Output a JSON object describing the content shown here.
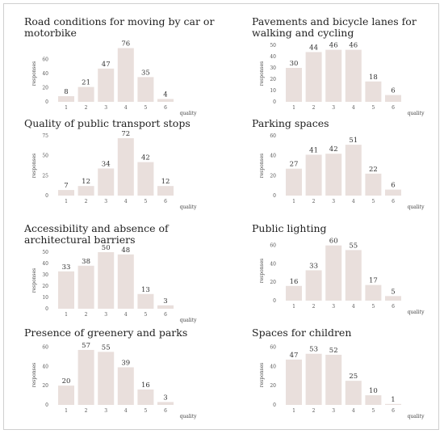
{
  "chart_data": [
    {
      "type": "bar",
      "title": "Road conditions for moving by car or motorbike",
      "xlabel": "quality",
      "ylabel": "responses",
      "categories": [
        "1",
        "2",
        "3",
        "4",
        "5",
        "6"
      ],
      "values": [
        8,
        21,
        47,
        76,
        35,
        4
      ],
      "ylim": [
        0,
        80
      ],
      "yticks": [
        0,
        20,
        40,
        60
      ],
      "grid": false
    },
    {
      "type": "bar",
      "title": "Pavements and bicycle lanes for walking and cycling",
      "xlabel": "quality",
      "ylabel": "responses",
      "categories": [
        "1",
        "2",
        "3",
        "4",
        "5",
        "6"
      ],
      "values": [
        30,
        44,
        46,
        46,
        18,
        6
      ],
      "ylim": [
        0,
        50
      ],
      "yticks": [
        0,
        10,
        20,
        30,
        40,
        50
      ],
      "grid": false
    },
    {
      "type": "bar",
      "title": "Quality of public transport stops",
      "xlabel": "quality",
      "ylabel": "responses",
      "categories": [
        "1",
        "2",
        "3",
        "4",
        "5",
        "6"
      ],
      "values": [
        7,
        12,
        34,
        72,
        42,
        12
      ],
      "ylim": [
        0,
        75
      ],
      "yticks": [
        0,
        25,
        50,
        75
      ],
      "grid": false
    },
    {
      "type": "bar",
      "title": "Parking spaces",
      "xlabel": "quality",
      "ylabel": "responses",
      "categories": [
        "1",
        "2",
        "3",
        "4",
        "5",
        "6"
      ],
      "values": [
        27,
        41,
        42,
        51,
        22,
        6
      ],
      "ylim": [
        0,
        60
      ],
      "yticks": [
        0,
        20,
        40,
        60
      ],
      "grid": false
    },
    {
      "type": "bar",
      "title": "Accessibility and absence of architectural barriers",
      "xlabel": "quality",
      "ylabel": "responses",
      "categories": [
        "1",
        "2",
        "3",
        "4",
        "5",
        "6"
      ],
      "values": [
        33,
        38,
        50,
        48,
        13,
        3
      ],
      "ylim": [
        0,
        50
      ],
      "yticks": [
        0,
        10,
        20,
        30,
        40,
        50
      ],
      "grid": false
    },
    {
      "type": "bar",
      "title": "Public lighting",
      "xlabel": "quality",
      "ylabel": "responses",
      "categories": [
        "1",
        "2",
        "3",
        "4",
        "5",
        "6"
      ],
      "values": [
        16,
        33,
        60,
        55,
        17,
        5
      ],
      "ylim": [
        0,
        65
      ],
      "yticks": [
        0,
        20,
        40,
        60
      ],
      "grid": false
    },
    {
      "type": "bar",
      "title": "Presence of greenery and parks",
      "xlabel": "quality",
      "ylabel": "responses",
      "categories": [
        "1",
        "2",
        "3",
        "4",
        "5",
        "6"
      ],
      "values": [
        20,
        57,
        55,
        39,
        16,
        3
      ],
      "ylim": [
        0,
        62
      ],
      "yticks": [
        0,
        20,
        40,
        60
      ],
      "grid": false
    },
    {
      "type": "bar",
      "title": "Spaces for children",
      "xlabel": "quality",
      "ylabel": "responses",
      "categories": [
        "1",
        "2",
        "3",
        "4",
        "5",
        "6"
      ],
      "values": [
        47,
        53,
        52,
        25,
        10,
        1
      ],
      "ylim": [
        0,
        62
      ],
      "yticks": [
        0,
        20,
        40,
        60
      ],
      "grid": false
    }
  ]
}
